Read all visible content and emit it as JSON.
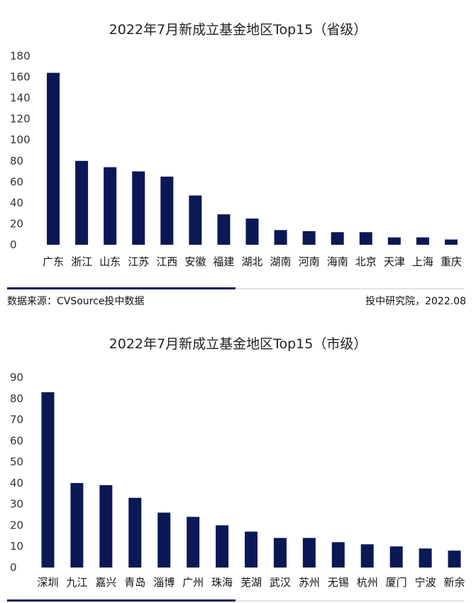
{
  "colors": {
    "bar": "#0b1855",
    "accent_rule": "#0b1855",
    "light_rule": "#e3e3e3"
  },
  "chart_data": [
    {
      "type": "bar",
      "title": "2022年7月新成立基金地区Top15（省级）",
      "categories": [
        "广东",
        "浙江",
        "山东",
        "江苏",
        "江西",
        "安徽",
        "福建",
        "湖北",
        "湖南",
        "河南",
        "海南",
        "北京",
        "天津",
        "上海",
        "重庆"
      ],
      "values": [
        164,
        80,
        74,
        70,
        65,
        47,
        29,
        25,
        14,
        13,
        12,
        12,
        7,
        7,
        5
      ],
      "ylim": [
        0,
        180
      ],
      "yticks": [
        0,
        20,
        40,
        60,
        80,
        100,
        120,
        140,
        160,
        180
      ],
      "grid": false,
      "xlabel": "",
      "ylabel": ""
    },
    {
      "type": "bar",
      "title": "2022年7月新成立基金地区Top15（市级）",
      "categories": [
        "深圳",
        "九江",
        "嘉兴",
        "青岛",
        "淄博",
        "广州",
        "珠海",
        "芜湖",
        "武汉",
        "苏州",
        "无锡",
        "杭州",
        "厦门",
        "宁波",
        "新余"
      ],
      "values": [
        83,
        40,
        39,
        33,
        26,
        24,
        20,
        17,
        14,
        14,
        12,
        11,
        10,
        9,
        8
      ],
      "ylim": [
        0,
        90
      ],
      "yticks": [
        0,
        10,
        20,
        30,
        40,
        50,
        60,
        70,
        80,
        90
      ],
      "grid": false,
      "xlabel": "",
      "ylabel": ""
    }
  ],
  "footer": {
    "source": "数据来源：CVSource投中数据",
    "credit": "投中研究院，2022.08"
  }
}
